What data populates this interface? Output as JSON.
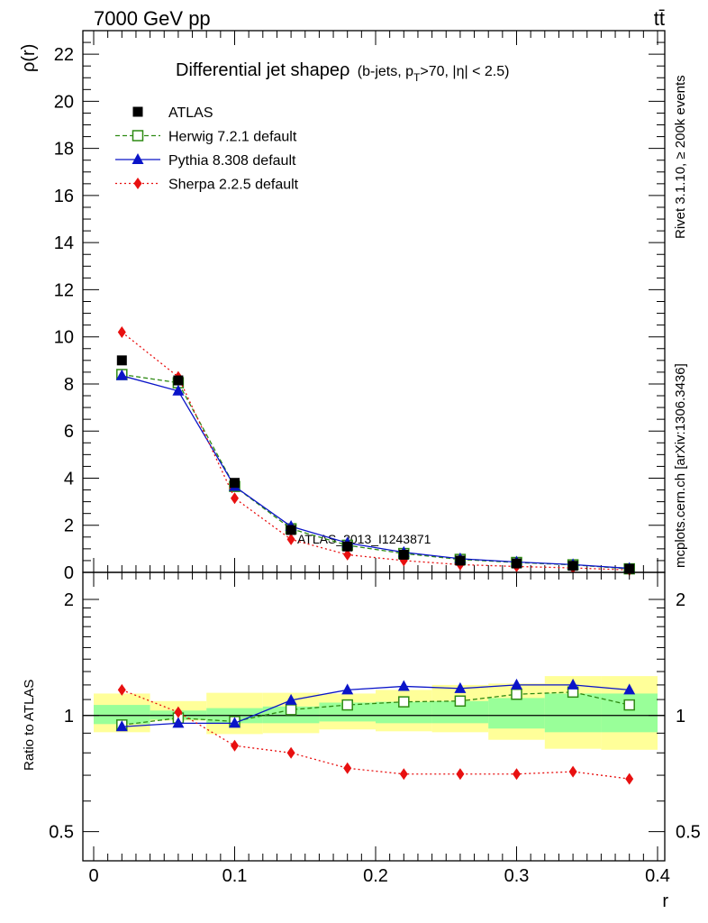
{
  "header": {
    "energy_label": "7000 GeV pp",
    "process_label": "tt̄"
  },
  "side_labels": {
    "rivet": "Rivet 3.1.10, ≥ 200k events",
    "mcplots": "mcplots.cern.ch [arXiv:1306.3436]"
  },
  "watermark": "ATLAS_2013_I1243871",
  "chart_data": [
    {
      "type": "line",
      "title": {
        "main": "Differential jet shapeρ",
        "cut_pre": "(b-jets, p",
        "cut_sub": "T",
        "cut_post": ">70, |η| < 2.5)"
      },
      "ylabel": "ρ(r)",
      "xlabel": "",
      "xlim": [
        0,
        0.4
      ],
      "ylim": [
        0,
        23
      ],
      "y_ticks": [
        0,
        2,
        4,
        6,
        8,
        10,
        12,
        14,
        16,
        18,
        20,
        22
      ],
      "y_tick_labels": [
        "0",
        "2",
        "4",
        "6",
        "8",
        "10",
        "12",
        "14",
        "16",
        "18",
        "20",
        "22"
      ],
      "grid": false,
      "legend_position": "top-left",
      "x": [
        0.02,
        0.06,
        0.1,
        0.14,
        0.18,
        0.22,
        0.26,
        0.3,
        0.34,
        0.38
      ],
      "series": [
        {
          "name": "ATLAS",
          "style": "data",
          "color": "#000000",
          "values": [
            9.0,
            8.15,
            3.8,
            1.8,
            1.1,
            0.75,
            0.5,
            0.38,
            0.28,
            0.15
          ]
        },
        {
          "name": "Herwig 7.2.1 default",
          "style": "dashed",
          "marker": "open-square",
          "color": "#2d8a12",
          "values": [
            8.4,
            8.05,
            3.65,
            1.85,
            1.15,
            0.8,
            0.55,
            0.42,
            0.32,
            0.15
          ]
        },
        {
          "name": "Pythia 8.308 default",
          "style": "solid",
          "marker": "triangle",
          "color": "#0a14c8",
          "values": [
            8.35,
            7.7,
            3.65,
            1.95,
            1.25,
            0.85,
            0.58,
            0.44,
            0.33,
            0.17
          ]
        },
        {
          "name": "Sherpa 2.2.5 default",
          "style": "dotted",
          "marker": "diamond",
          "color": "#e81010",
          "values": [
            10.2,
            8.3,
            3.15,
            1.4,
            0.75,
            0.5,
            0.33,
            0.25,
            0.19,
            0.1
          ]
        }
      ]
    },
    {
      "type": "line",
      "ylabel": "Ratio to ATLAS",
      "xlabel": "r",
      "xlim": [
        0,
        0.4
      ],
      "x_ticks": [
        0,
        0.1,
        0.2,
        0.3,
        0.4
      ],
      "x_tick_labels": [
        "0",
        "0.1",
        "0.2",
        "0.3",
        "0.4"
      ],
      "y_scale": "log",
      "ylim": [
        0.42,
        2.35
      ],
      "y_ticks": [
        0.5,
        1,
        2
      ],
      "y_tick_labels": [
        "0.5",
        "1",
        "2"
      ],
      "reference_line": 1,
      "bins": [
        [
          0.0,
          0.04
        ],
        [
          0.04,
          0.08
        ],
        [
          0.08,
          0.12
        ],
        [
          0.12,
          0.16
        ],
        [
          0.16,
          0.2
        ],
        [
          0.2,
          0.24
        ],
        [
          0.24,
          0.28
        ],
        [
          0.28,
          0.32
        ],
        [
          0.32,
          0.36
        ],
        [
          0.36,
          0.4
        ]
      ],
      "bands": [
        {
          "name": "stat",
          "color": "#99ff99",
          "low": [
            0.95,
            0.975,
            0.955,
            0.955,
            0.965,
            0.955,
            0.955,
            0.925,
            0.905,
            0.905
          ],
          "high": [
            1.065,
            1.03,
            1.045,
            1.055,
            1.08,
            1.085,
            1.09,
            1.11,
            1.14,
            1.14
          ]
        },
        {
          "name": "total",
          "color": "#ffff99",
          "low": [
            0.905,
            0.97,
            0.895,
            0.9,
            0.92,
            0.91,
            0.905,
            0.865,
            0.82,
            0.815
          ],
          "high": [
            1.14,
            1.09,
            1.145,
            1.145,
            1.14,
            1.165,
            1.2,
            1.21,
            1.265,
            1.265
          ]
        }
      ],
      "x": [
        0.02,
        0.06,
        0.1,
        0.14,
        0.18,
        0.22,
        0.26,
        0.3,
        0.34,
        0.38
      ],
      "series": [
        {
          "name": "Herwig 7.2.1 default",
          "style": "dashed",
          "marker": "open-square",
          "color": "#2d8a12",
          "values": [
            0.945,
            0.985,
            0.965,
            1.035,
            1.065,
            1.085,
            1.09,
            1.135,
            1.15,
            1.065
          ]
        },
        {
          "name": "Pythia 8.308 default",
          "style": "solid",
          "marker": "triangle",
          "color": "#0a14c8",
          "values": [
            0.935,
            0.955,
            0.955,
            1.095,
            1.165,
            1.19,
            1.175,
            1.2,
            1.2,
            1.165
          ]
        },
        {
          "name": "Sherpa 2.2.5 default",
          "style": "dotted",
          "marker": "diamond",
          "color": "#e81010",
          "values": [
            1.165,
            1.02,
            0.835,
            0.8,
            0.73,
            0.705,
            0.705,
            0.705,
            0.715,
            0.685
          ]
        }
      ]
    }
  ]
}
